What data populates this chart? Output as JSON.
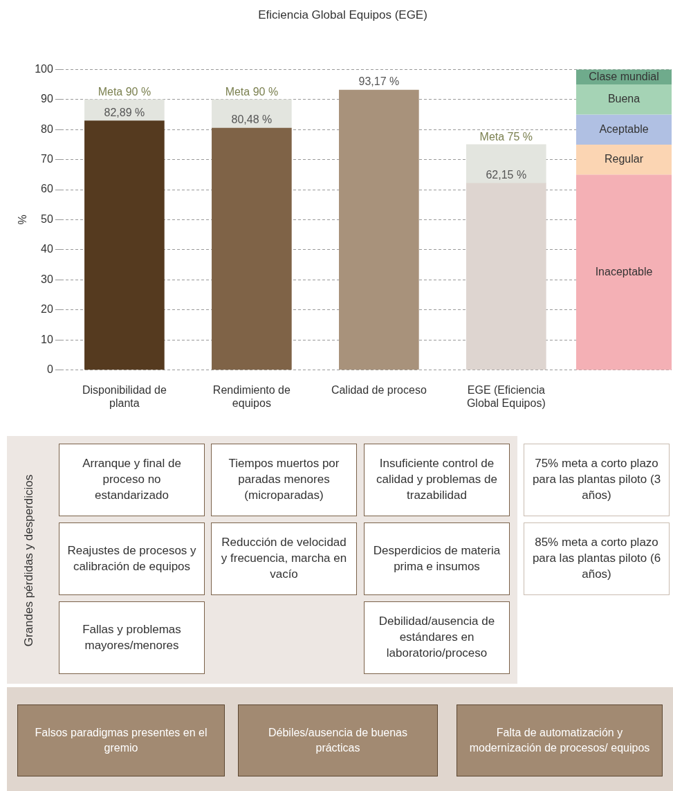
{
  "chart_data": {
    "type": "bar",
    "title": "Eficiencia Global Equipos (EGE)",
    "ylabel": "%",
    "categories": [
      "Disponibilidad de planta",
      "Rendimiento de equipos",
      "Calidad de proceso",
      "EGE (Eficiencia Global Equipos)"
    ],
    "stacked": true,
    "series": [
      {
        "colors": [
          "#553a1f",
          "#7f6347",
          "#a8927b",
          "#ded5d0"
        ],
        "values": [
          82.89,
          80.48,
          93.17,
          62.15
        ],
        "value_labels": [
          "82,89 %",
          "80,48 %",
          "93,17 %",
          "62,15 %"
        ]
      },
      {
        "color": "#e3e5df",
        "values": [
          7.11,
          9.52,
          null,
          12.85
        ]
      }
    ],
    "ylim": [
      0,
      100
    ],
    "yticks": [
      0,
      10,
      20,
      30,
      40,
      50,
      60,
      70,
      80,
      90,
      100
    ],
    "grid": "y",
    "line_style": "dashed",
    "legend": false,
    "bands": [
      {
        "axis": "y",
        "from": 0,
        "to": 65,
        "label": "Inaceptable",
        "color": "#f4b0b5"
      },
      {
        "axis": "y",
        "from": 65,
        "to": 75,
        "label": "Regular",
        "color": "#fbd5b3"
      },
      {
        "axis": "y",
        "from": 75,
        "to": 85,
        "label": "Aceptable",
        "color": "#b0c0e3"
      },
      {
        "axis": "y",
        "from": 85,
        "to": 95,
        "label": "Buena",
        "color": "#a5d3b5"
      },
      {
        "axis": "y",
        "from": 95,
        "to": 100,
        "label": "Clase mundial",
        "color": "#6fab8c"
      }
    ],
    "annotations": [
      {
        "text": "Meta 90 %",
        "x": "Disponibilidad de planta",
        "y": 90
      },
      {
        "text": "Meta 90 %",
        "x": "Rendimiento de equipos",
        "y": 90
      },
      {
        "text": "Meta 75 %",
        "x": "EGE (Eficiencia Global Equipos)",
        "y": 75
      },
      "Grandes pérdidas y desperdicios",
      "Arranque y final de proceso no estandarizado",
      "Tiempos muertos por paradas menores (microparadas)",
      "Insuficiente control de calidad y problemas de trazabilidad",
      "75% meta a corto plazo para las plantas piloto (3 años)",
      "Reajustes de procesos y calibración de equipos",
      "Reducción de velocidad y frecuencia, marcha en vacío",
      "Desperdicios de materia prima e insumos",
      "85% meta a corto plazo para las plantas piloto (6 años)",
      "Fallas y problemas mayores/menores",
      "Debilidad/ausencia de estándares en laboratorio/proceso",
      "Falsos paradigmas presentes en el gremio",
      "Débiles/ausencia de buenas prácticas",
      "Falta de automatización y modernización de procesos/ equipos"
    ]
  }
}
